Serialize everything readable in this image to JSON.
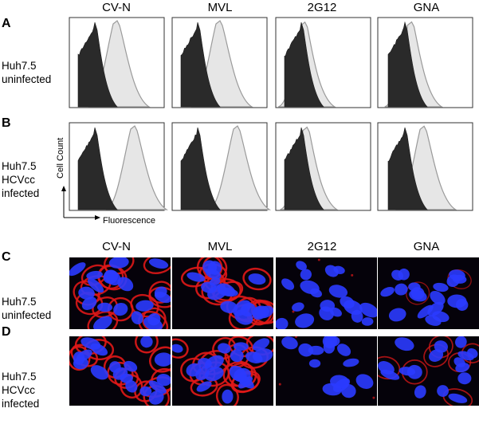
{
  "columns": [
    "CV-N",
    "MVL",
    "2G12",
    "GNA"
  ],
  "panels": [
    {
      "letter": "A",
      "label": [
        "Huh7.5",
        "uninfected"
      ],
      "kind": "histogram"
    },
    {
      "letter": "B",
      "label": [
        "Huh7.5",
        "HCVcc",
        "infected"
      ],
      "kind": "histogram"
    },
    {
      "letter": "C",
      "label": [
        "Huh7.5",
        "uninfected"
      ],
      "kind": "micrograph"
    },
    {
      "letter": "D",
      "label": [
        "Huh7.5",
        "HCVcc",
        "infected"
      ],
      "kind": "micrograph"
    }
  ],
  "axes": {
    "y_label": "Cell Count",
    "x_label": "Fluorescence"
  },
  "colors": {
    "control_fill": "#2a2a2a",
    "stain_fill": "#e6e6e6",
    "stain_stroke": "#9a9a9a",
    "nuclei": "#2b3bff",
    "membrane": "#e01818",
    "micrograph_bg": "#05020a"
  },
  "stain_level": {
    "A": [
      1.0,
      1.0,
      0.1,
      0.25
    ],
    "B": [
      1.0,
      1.0,
      0.2,
      0.85
    ],
    "C": [
      0.85,
      0.9,
      0.08,
      0.2
    ],
    "D": [
      0.9,
      0.9,
      0.1,
      0.45
    ]
  }
}
